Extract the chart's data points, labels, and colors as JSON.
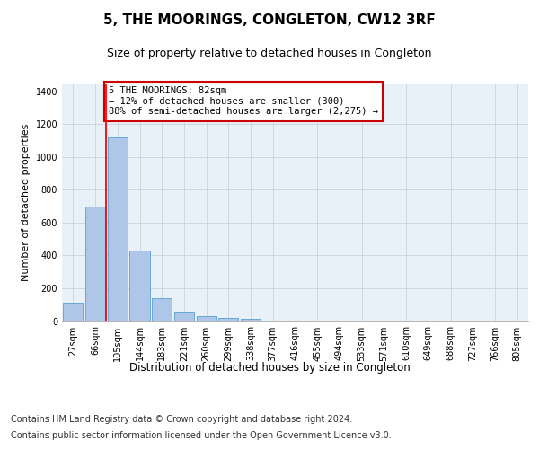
{
  "title": "5, THE MOORINGS, CONGLETON, CW12 3RF",
  "subtitle": "Size of property relative to detached houses in Congleton",
  "xlabel": "Distribution of detached houses by size in Congleton",
  "ylabel": "Number of detached properties",
  "categories": [
    "27sqm",
    "66sqm",
    "105sqm",
    "144sqm",
    "183sqm",
    "221sqm",
    "260sqm",
    "299sqm",
    "338sqm",
    "377sqm",
    "416sqm",
    "455sqm",
    "494sqm",
    "533sqm",
    "571sqm",
    "610sqm",
    "649sqm",
    "688sqm",
    "727sqm",
    "766sqm",
    "805sqm"
  ],
  "values": [
    110,
    700,
    1120,
    430,
    140,
    55,
    32,
    18,
    12,
    0,
    0,
    0,
    0,
    0,
    0,
    0,
    0,
    0,
    0,
    0,
    0
  ],
  "bar_color": "#aec6e8",
  "bar_edge_color": "#5a9fd4",
  "grid_color": "#c8d4e0",
  "background_color": "#e8f0f8",
  "redline_x": 1.5,
  "annotation_text": "5 THE MOORINGS: 82sqm\n← 12% of detached houses are smaller (300)\n88% of semi-detached houses are larger (2,275) →",
  "annotation_box_color": "#ffffff",
  "annotation_box_edgecolor": "#cc0000",
  "ylim": [
    0,
    1450
  ],
  "yticks": [
    0,
    200,
    400,
    600,
    800,
    1000,
    1200,
    1400
  ],
  "footer_line1": "Contains HM Land Registry data © Crown copyright and database right 2024.",
  "footer_line2": "Contains public sector information licensed under the Open Government Licence v3.0.",
  "title_fontsize": 11,
  "subtitle_fontsize": 9,
  "axis_label_fontsize": 8,
  "tick_fontsize": 7,
  "annotation_fontsize": 7.5,
  "footer_fontsize": 7
}
